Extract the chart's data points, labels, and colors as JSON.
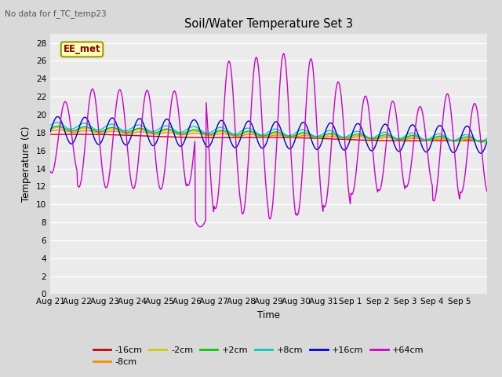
{
  "title": "Soil/Water Temperature Set 3",
  "no_data_label": "No data for f_TC_temp23",
  "xlabel": "Time",
  "ylabel": "Temperature (C)",
  "ylim": [
    0,
    29
  ],
  "yticks": [
    0,
    2,
    4,
    6,
    8,
    10,
    12,
    14,
    16,
    18,
    20,
    22,
    24,
    26,
    28
  ],
  "bg_color": "#d9d9d9",
  "plot_bg_color": "#ebebeb",
  "legend_label": "EE_met",
  "series_colors": {
    "-16cm": "#cc0000",
    "-8cm": "#ff8800",
    "-2cm": "#cccc00",
    "+2cm": "#00cc00",
    "+8cm": "#00cccc",
    "+16cm": "#0000cc",
    "+64cm": "#cc00cc"
  },
  "x_labels": [
    "Aug 21",
    "Aug 22",
    "Aug 23",
    "Aug 24",
    "Aug 25",
    "Aug 26",
    "Aug 27",
    "Aug 28",
    "Aug 29",
    "Aug 30",
    "Aug 31",
    "Sep 1",
    "Sep 2",
    "Sep 3",
    "Sep 4",
    "Sep 5"
  ],
  "figsize": [
    6.4,
    4.8
  ],
  "dpi": 100
}
